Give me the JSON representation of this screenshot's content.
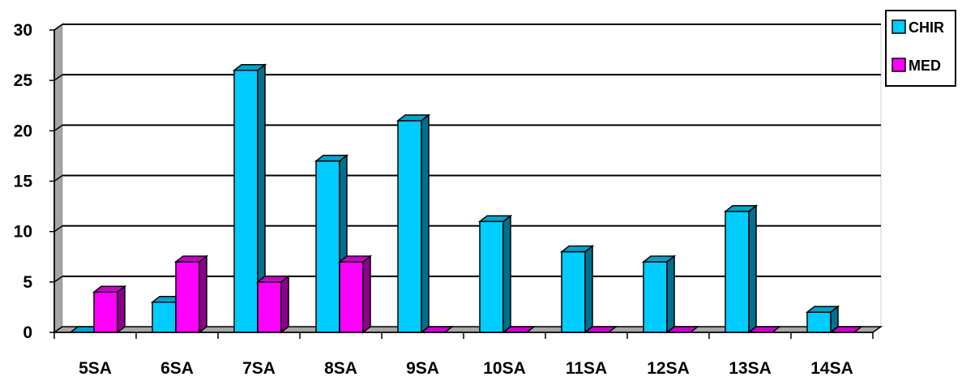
{
  "chart_data": {
    "type": "bar",
    "title": "",
    "xlabel": "",
    "ylabel": "",
    "ylim": [
      0,
      30
    ],
    "yticks": [
      0,
      5,
      10,
      15,
      20,
      25,
      30
    ],
    "categories": [
      "5SA",
      "6SA",
      "7SA",
      "8SA",
      "9SA",
      "10SA",
      "11SA",
      "12SA",
      "13SA",
      "14SA"
    ],
    "series": [
      {
        "name": "CHIR",
        "color": "#00CCFF",
        "values": [
          0,
          3,
          26,
          17,
          21,
          11,
          8,
          7,
          12,
          2
        ]
      },
      {
        "name": "MED",
        "color": "#FF00FF",
        "values": [
          4,
          7,
          5,
          7,
          0,
          0,
          0,
          0,
          0,
          0
        ]
      }
    ],
    "grid": true,
    "legend_position": "top-right"
  }
}
